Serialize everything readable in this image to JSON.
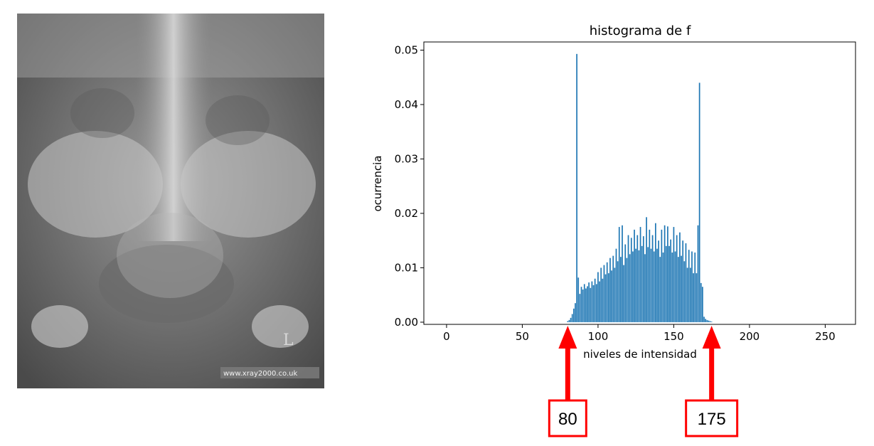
{
  "xray": {
    "watermark": "www.xray2000.co.uk",
    "side_marker": "L"
  },
  "chart_data": {
    "type": "bar",
    "title": "histograma de f",
    "xlabel": "niveles de intensidad",
    "ylabel": "ocurrencia",
    "xlim": [
      -15,
      270
    ],
    "ylim": [
      -0.0004,
      0.0515
    ],
    "xticks": [
      0,
      50,
      100,
      150,
      200,
      250
    ],
    "yticks": [
      0.0,
      0.01,
      0.02,
      0.03,
      0.04,
      0.05
    ],
    "ytick_labels": [
      "0.00",
      "0.01",
      "0.02",
      "0.03",
      "0.04",
      "0.05"
    ],
    "color": "#1f77b4",
    "x": [
      80,
      81,
      82,
      83,
      84,
      85,
      86,
      87,
      88,
      89,
      90,
      91,
      92,
      93,
      94,
      95,
      96,
      97,
      98,
      99,
      100,
      101,
      102,
      103,
      104,
      105,
      106,
      107,
      108,
      109,
      110,
      111,
      112,
      113,
      114,
      115,
      116,
      117,
      118,
      119,
      120,
      121,
      122,
      123,
      124,
      125,
      126,
      127,
      128,
      129,
      130,
      131,
      132,
      133,
      134,
      135,
      136,
      137,
      138,
      139,
      140,
      141,
      142,
      143,
      144,
      145,
      146,
      147,
      148,
      149,
      150,
      151,
      152,
      153,
      154,
      155,
      156,
      157,
      158,
      159,
      160,
      161,
      162,
      163,
      164,
      165,
      166,
      167,
      168,
      169,
      170,
      171,
      172,
      173,
      174,
      175
    ],
    "values": [
      0.0002,
      0.0004,
      0.0008,
      0.0015,
      0.0025,
      0.0035,
      0.0493,
      0.0082,
      0.0052,
      0.0065,
      0.006,
      0.007,
      0.0062,
      0.0066,
      0.0073,
      0.0063,
      0.0075,
      0.0068,
      0.008,
      0.007,
      0.0092,
      0.0075,
      0.01,
      0.008,
      0.0105,
      0.0088,
      0.011,
      0.009,
      0.0118,
      0.0095,
      0.0122,
      0.01,
      0.0135,
      0.0112,
      0.0175,
      0.012,
      0.0178,
      0.0105,
      0.0143,
      0.0118,
      0.016,
      0.0125,
      0.0155,
      0.013,
      0.017,
      0.0135,
      0.016,
      0.0132,
      0.0175,
      0.014,
      0.0158,
      0.0125,
      0.0193,
      0.0138,
      0.017,
      0.0135,
      0.016,
      0.013,
      0.0182,
      0.0135,
      0.015,
      0.012,
      0.017,
      0.0128,
      0.0178,
      0.014,
      0.0176,
      0.014,
      0.0152,
      0.0128,
      0.0175,
      0.013,
      0.016,
      0.012,
      0.0165,
      0.0122,
      0.015,
      0.0112,
      0.0145,
      0.01,
      0.0133,
      0.01,
      0.013,
      0.009,
      0.0128,
      0.009,
      0.0178,
      0.044,
      0.0072,
      0.0065,
      0.001,
      0.0006,
      0.0004,
      0.0003,
      0.0002,
      0.0001
    ]
  },
  "annotations": [
    {
      "label": "80",
      "x": 80
    },
    {
      "label": "175",
      "x": 175
    }
  ],
  "colors": {
    "annotation": "#ff0000",
    "bars": "#1f77b4"
  }
}
